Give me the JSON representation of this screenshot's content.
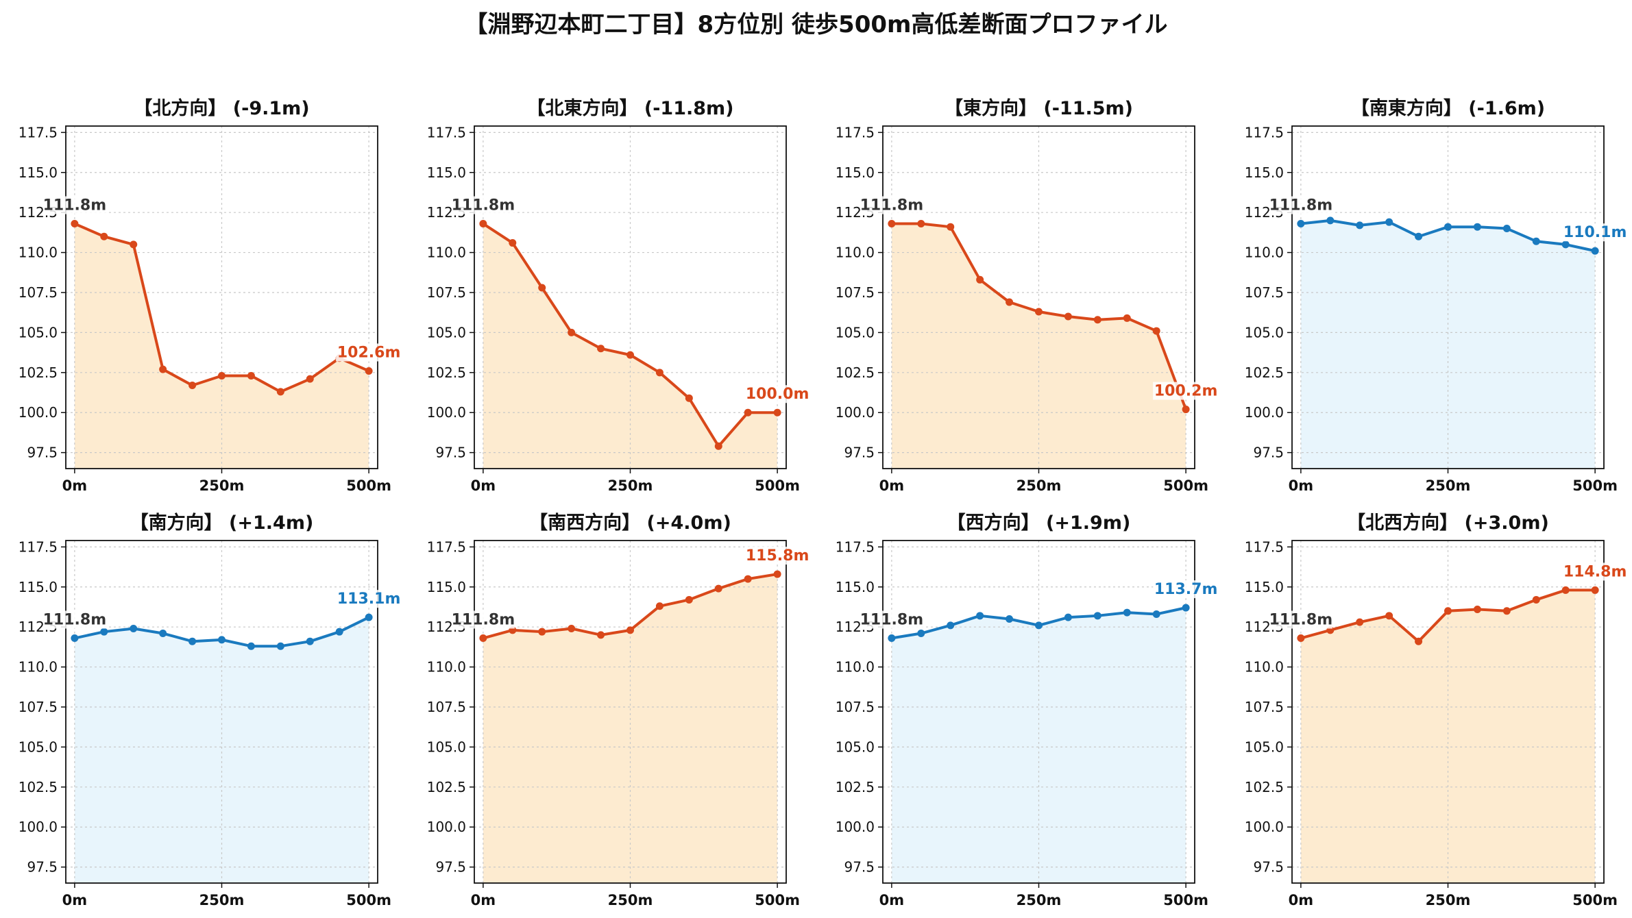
{
  "title": "【淵野辺本町二丁目】8方位別 徒歩500m高低差断面プロファイル",
  "colors": {
    "descending": "#d9481a",
    "descending_fill": "#fdebd0",
    "ascending": "#1a7abf",
    "ascending_fill": "#e8f5fc",
    "start_label": "#333333",
    "grid": "#c8c8c8"
  },
  "chart_data": [
    {
      "type": "line",
      "title": "【北方向】 (-9.1m)",
      "trend": "down",
      "x": [
        0,
        50,
        100,
        150,
        200,
        250,
        300,
        350,
        400,
        450,
        500
      ],
      "y": [
        111.8,
        111.0,
        110.5,
        102.7,
        101.7,
        102.3,
        102.3,
        101.3,
        102.1,
        103.4,
        102.6
      ],
      "start_label": "111.8m",
      "end_label": "102.6m",
      "xticks": [
        "0m",
        "250m",
        "500m"
      ],
      "yticks": [
        "97.5",
        "100.0",
        "102.5",
        "105.0",
        "107.5",
        "110.0",
        "112.5",
        "115.0",
        "117.5"
      ],
      "xlim": [
        -15,
        515
      ],
      "ylim": [
        96.5,
        117.9
      ],
      "grid": true
    },
    {
      "type": "line",
      "title": "【北東方向】 (-11.8m)",
      "trend": "down",
      "x": [
        0,
        50,
        100,
        150,
        200,
        250,
        300,
        350,
        400,
        450,
        500
      ],
      "y": [
        111.8,
        110.6,
        107.8,
        105.0,
        104.0,
        103.6,
        102.5,
        100.9,
        97.9,
        100.0,
        100.0
      ],
      "start_label": "111.8m",
      "end_label": "100.0m",
      "xticks": [
        "0m",
        "250m",
        "500m"
      ],
      "yticks": [
        "97.5",
        "100.0",
        "102.5",
        "105.0",
        "107.5",
        "110.0",
        "112.5",
        "115.0",
        "117.5"
      ],
      "xlim": [
        -15,
        515
      ],
      "ylim": [
        96.5,
        117.9
      ],
      "grid": true
    },
    {
      "type": "line",
      "title": "【東方向】 (-11.5m)",
      "trend": "down",
      "x": [
        0,
        50,
        100,
        150,
        200,
        250,
        300,
        350,
        400,
        450,
        500
      ],
      "y": [
        111.8,
        111.8,
        111.6,
        108.3,
        106.9,
        106.3,
        106.0,
        105.8,
        105.9,
        105.1,
        100.2
      ],
      "start_label": "111.8m",
      "end_label": "100.2m",
      "xticks": [
        "0m",
        "250m",
        "500m"
      ],
      "yticks": [
        "97.5",
        "100.0",
        "102.5",
        "105.0",
        "107.5",
        "110.0",
        "112.5",
        "115.0",
        "117.5"
      ],
      "xlim": [
        -15,
        515
      ],
      "ylim": [
        96.5,
        117.9
      ],
      "grid": true
    },
    {
      "type": "line",
      "title": "【南東方向】 (-1.6m)",
      "trend": "flat",
      "x": [
        0,
        50,
        100,
        150,
        200,
        250,
        300,
        350,
        400,
        450,
        500
      ],
      "y": [
        111.8,
        112.0,
        111.7,
        111.9,
        111.0,
        111.6,
        111.6,
        111.5,
        110.7,
        110.5,
        110.1
      ],
      "start_label": "111.8m",
      "end_label": "110.1m",
      "xticks": [
        "0m",
        "250m",
        "500m"
      ],
      "yticks": [
        "97.5",
        "100.0",
        "102.5",
        "105.0",
        "107.5",
        "110.0",
        "112.5",
        "115.0",
        "117.5"
      ],
      "xlim": [
        -15,
        515
      ],
      "ylim": [
        96.5,
        117.9
      ],
      "grid": true
    },
    {
      "type": "line",
      "title": "【南方向】 (+1.4m)",
      "trend": "flat",
      "x": [
        0,
        50,
        100,
        150,
        200,
        250,
        300,
        350,
        400,
        450,
        500
      ],
      "y": [
        111.8,
        112.2,
        112.4,
        112.1,
        111.6,
        111.7,
        111.3,
        111.3,
        111.6,
        112.2,
        113.1
      ],
      "start_label": "111.8m",
      "end_label": "113.1m",
      "xticks": [
        "0m",
        "250m",
        "500m"
      ],
      "yticks": [
        "97.5",
        "100.0",
        "102.5",
        "105.0",
        "107.5",
        "110.0",
        "112.5",
        "115.0",
        "117.5"
      ],
      "xlim": [
        -15,
        515
      ],
      "ylim": [
        96.5,
        117.9
      ],
      "grid": true
    },
    {
      "type": "line",
      "title": "【南西方向】 (+4.0m)",
      "trend": "up",
      "x": [
        0,
        50,
        100,
        150,
        200,
        250,
        300,
        350,
        400,
        450,
        500
      ],
      "y": [
        111.8,
        112.3,
        112.2,
        112.4,
        112.0,
        112.3,
        113.8,
        114.2,
        114.9,
        115.5,
        115.8
      ],
      "start_label": "111.8m",
      "end_label": "115.8m",
      "xticks": [
        "0m",
        "250m",
        "500m"
      ],
      "yticks": [
        "97.5",
        "100.0",
        "102.5",
        "105.0",
        "107.5",
        "110.0",
        "112.5",
        "115.0",
        "117.5"
      ],
      "xlim": [
        -15,
        515
      ],
      "ylim": [
        96.5,
        117.9
      ],
      "grid": true
    },
    {
      "type": "line",
      "title": "【西方向】 (+1.9m)",
      "trend": "flat",
      "x": [
        0,
        50,
        100,
        150,
        200,
        250,
        300,
        350,
        400,
        450,
        500
      ],
      "y": [
        111.8,
        112.1,
        112.6,
        113.2,
        113.0,
        112.6,
        113.1,
        113.2,
        113.4,
        113.3,
        113.7
      ],
      "start_label": "111.8m",
      "end_label": "113.7m",
      "xticks": [
        "0m",
        "250m",
        "500m"
      ],
      "yticks": [
        "97.5",
        "100.0",
        "102.5",
        "105.0",
        "107.5",
        "110.0",
        "112.5",
        "115.0",
        "117.5"
      ],
      "xlim": [
        -15,
        515
      ],
      "ylim": [
        96.5,
        117.9
      ],
      "grid": true
    },
    {
      "type": "line",
      "title": "【北西方向】 (+3.0m)",
      "trend": "up",
      "x": [
        0,
        50,
        100,
        150,
        200,
        250,
        300,
        350,
        400,
        450,
        500
      ],
      "y": [
        111.8,
        112.3,
        112.8,
        113.2,
        111.6,
        113.5,
        113.6,
        113.5,
        114.2,
        114.8,
        114.8
      ],
      "start_label": "111.8m",
      "end_label": "114.8m",
      "xticks": [
        "0m",
        "250m",
        "500m"
      ],
      "yticks": [
        "97.5",
        "100.0",
        "102.5",
        "105.0",
        "107.5",
        "110.0",
        "112.5",
        "115.0",
        "117.5"
      ],
      "xlim": [
        -15,
        515
      ],
      "ylim": [
        96.5,
        117.9
      ],
      "grid": true
    }
  ]
}
